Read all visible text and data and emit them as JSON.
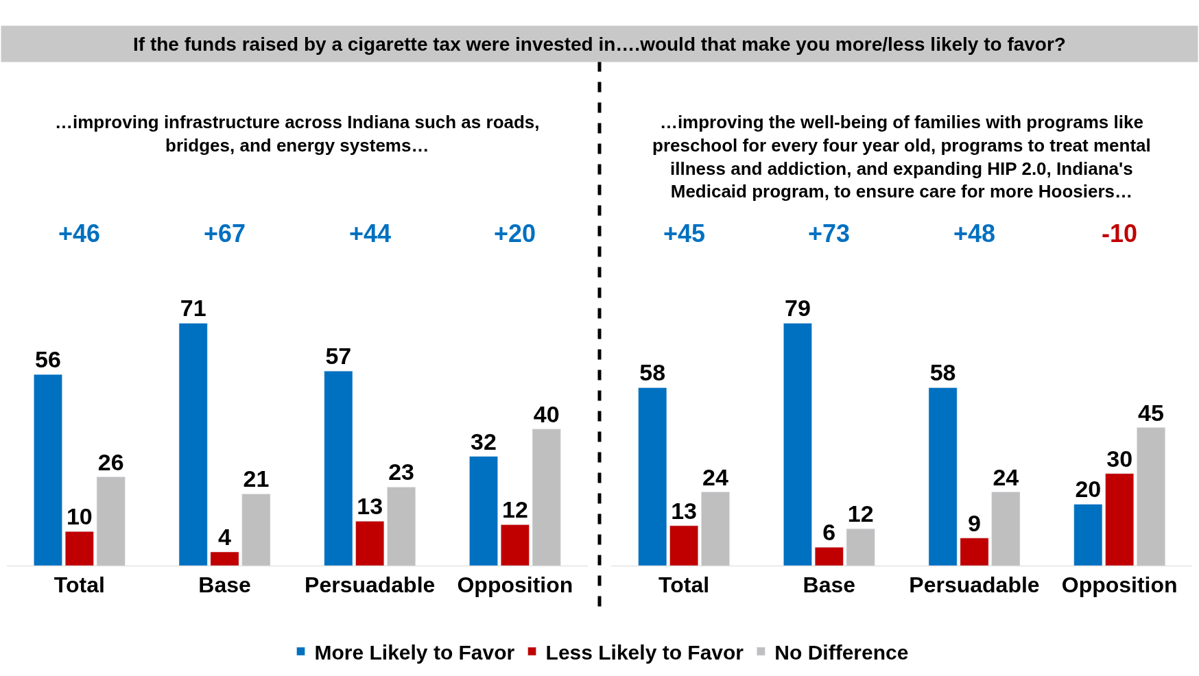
{
  "chart_data": [
    {
      "type": "bar",
      "title": "If the funds raised by a cigarette tax were invested in….would that make you more/less likely to favor?",
      "subtitle": "…improving infrastructure across Indiana such as roads, bridges, and energy systems…",
      "categories": [
        "Total",
        "Base",
        "Persuadable",
        "Opposition"
      ],
      "series": [
        {
          "name": "More Likely to Favor",
          "color": "#0070c0",
          "values": [
            56,
            71,
            57,
            32
          ]
        },
        {
          "name": "Less Likely to Favor",
          "color": "#c00000",
          "values": [
            10,
            4,
            13,
            12
          ]
        },
        {
          "name": "No Difference",
          "color": "#bfbfbf",
          "values": [
            26,
            21,
            23,
            40
          ]
        }
      ],
      "annotations": [
        "+46",
        "+67",
        "+44",
        "+20"
      ],
      "data_labels": true,
      "legend": "bottom"
    },
    {
      "type": "bar",
      "subtitle": "…improving the well-being of families with programs like preschool for every four year old, programs to treat mental illness and addiction, and expanding HIP 2.0, Indiana's Medicaid program, to ensure care for more Hoosiers…",
      "categories": [
        "Total",
        "Base",
        "Persuadable",
        "Opposition"
      ],
      "series": [
        {
          "color": "#0070c0",
          "values": [
            58,
            79,
            58,
            20
          ]
        },
        {
          "color": "#c00000",
          "values": [
            13,
            6,
            9,
            30
          ]
        },
        {
          "color": "#bfbfbf",
          "values": [
            24,
            12,
            24,
            45
          ]
        }
      ],
      "annotations": [
        "+45",
        "+73",
        "+48",
        "-10"
      ],
      "data_labels": true
    }
  ]
}
